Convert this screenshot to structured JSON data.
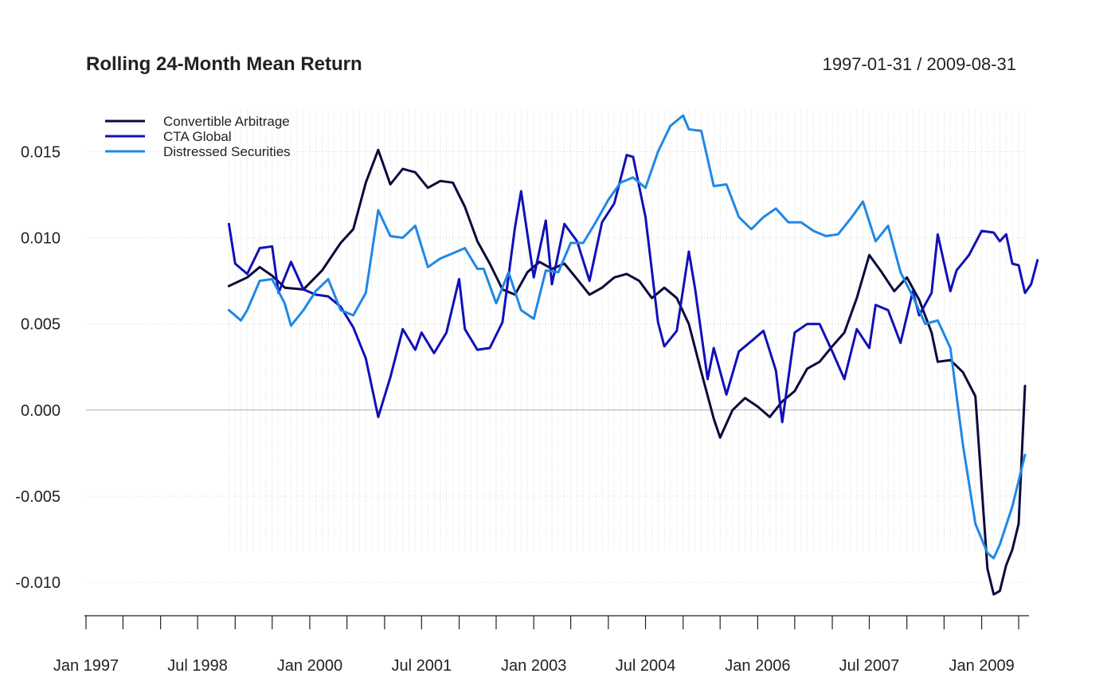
{
  "chart_data": {
    "type": "line",
    "title": "Rolling 24-Month Mean Return",
    "date_range": "1997-01-31 / 2009-08-31",
    "xlabel": "",
    "ylabel": "",
    "ylim": [
      -0.0118,
      0.0177
    ],
    "xlim": [
      "1997-01-31",
      "2009-08-31"
    ],
    "grid": true,
    "legend_position": "top-left",
    "y_ticks": [
      {
        "value": 0.015,
        "label": "0.015"
      },
      {
        "value": 0.01,
        "label": "0.010"
      },
      {
        "value": 0.005,
        "label": "0.005"
      },
      {
        "value": 0.0,
        "label": "0.000"
      },
      {
        "value": -0.005,
        "label": "-0.005"
      },
      {
        "value": -0.01,
        "label": "-0.010"
      }
    ],
    "x_ticks": [
      {
        "date": "1997-01-31",
        "label": "Jan 1997"
      },
      {
        "date": "1998-07-31",
        "label": "Jul 1998"
      },
      {
        "date": "2000-01-31",
        "label": "Jan 2000"
      },
      {
        "date": "2001-07-31",
        "label": "Jul 2001"
      },
      {
        "date": "2003-01-31",
        "label": "Jan 2003"
      },
      {
        "date": "2004-07-31",
        "label": "Jul 2004"
      },
      {
        "date": "2006-01-31",
        "label": "Jan 2006"
      },
      {
        "date": "2007-07-31",
        "label": "Jul 2007"
      },
      {
        "date": "2009-01-31",
        "label": "Jan 2009"
      }
    ],
    "series": [
      {
        "name": "Convertible Arbitrage",
        "color": "#0a0a3c",
        "points": [
          [
            "1998-12-31",
            0.0072
          ],
          [
            "1999-03-31",
            0.0077
          ],
          [
            "1999-05-31",
            0.0083
          ],
          [
            "1999-07-31",
            0.0078
          ],
          [
            "1999-09-31",
            0.0071
          ],
          [
            "1999-12-31",
            0.007
          ],
          [
            "2000-03-31",
            0.0081
          ],
          [
            "2000-06-30",
            0.0097
          ],
          [
            "2000-08-31",
            0.0105
          ],
          [
            "2000-10-31",
            0.0132
          ],
          [
            "2000-12-31",
            0.0151
          ],
          [
            "2001-02-28",
            0.0131
          ],
          [
            "2001-04-30",
            0.014
          ],
          [
            "2001-06-30",
            0.0138
          ],
          [
            "2001-08-31",
            0.0129
          ],
          [
            "2001-10-31",
            0.0133
          ],
          [
            "2001-12-31",
            0.0132
          ],
          [
            "2002-02-28",
            0.0118
          ],
          [
            "2002-04-30",
            0.0098
          ],
          [
            "2002-06-30",
            0.0085
          ],
          [
            "2002-08-31",
            0.007
          ],
          [
            "2002-10-31",
            0.0067
          ],
          [
            "2002-12-31",
            0.008
          ],
          [
            "2003-02-28",
            0.0086
          ],
          [
            "2003-04-30",
            0.0082
          ],
          [
            "2003-06-30",
            0.0085
          ],
          [
            "2003-08-31",
            0.0076
          ],
          [
            "2003-10-31",
            0.0067
          ],
          [
            "2003-12-31",
            0.0071
          ],
          [
            "2004-02-29",
            0.0077
          ],
          [
            "2004-04-30",
            0.0079
          ],
          [
            "2004-06-30",
            0.0075
          ],
          [
            "2004-08-31",
            0.0065
          ],
          [
            "2004-10-31",
            0.0071
          ],
          [
            "2004-12-31",
            0.0065
          ],
          [
            "2005-02-28",
            0.005
          ],
          [
            "2005-04-30",
            0.0022
          ],
          [
            "2005-06-30",
            -0.0005
          ],
          [
            "2005-07-31",
            -0.0016
          ],
          [
            "2005-09-30",
            0.0
          ],
          [
            "2005-11-30",
            0.0007
          ],
          [
            "2006-01-31",
            0.0002
          ],
          [
            "2006-03-31",
            -0.0004
          ],
          [
            "2006-05-31",
            0.0005
          ],
          [
            "2006-07-31",
            0.0011
          ],
          [
            "2006-09-30",
            0.0024
          ],
          [
            "2006-11-30",
            0.0028
          ],
          [
            "2007-01-31",
            0.0037
          ],
          [
            "2007-03-31",
            0.0045
          ],
          [
            "2007-05-31",
            0.0065
          ],
          [
            "2007-07-31",
            0.009
          ],
          [
            "2007-09-30",
            0.008
          ],
          [
            "2007-11-30",
            0.0069
          ],
          [
            "2008-01-31",
            0.0077
          ],
          [
            "2008-03-31",
            0.0064
          ],
          [
            "2008-05-31",
            0.0045
          ],
          [
            "2008-06-30",
            0.0028
          ],
          [
            "2008-08-31",
            0.0029
          ],
          [
            "2008-10-31",
            0.0022
          ],
          [
            "2008-12-31",
            0.0008
          ],
          [
            "2009-02-28",
            -0.0092
          ],
          [
            "2009-03-31",
            -0.0107
          ],
          [
            "2009-04-30",
            -0.0105
          ],
          [
            "2009-05-31",
            -0.009
          ],
          [
            "2009-06-30",
            -0.0081
          ],
          [
            "2009-07-31",
            -0.0066
          ],
          [
            "2009-08-31",
            0.0014
          ]
        ]
      },
      {
        "name": "CTA Global",
        "color": "#1010b8",
        "points": [
          [
            "1998-12-31",
            0.0108
          ],
          [
            "1999-01-31",
            0.0085
          ],
          [
            "1999-03-31",
            0.0079
          ],
          [
            "1999-05-31",
            0.0094
          ],
          [
            "1999-07-31",
            0.0095
          ],
          [
            "1999-08-31",
            0.0068
          ],
          [
            "1999-10-31",
            0.0086
          ],
          [
            "1999-12-31",
            0.007
          ],
          [
            "2000-02-29",
            0.0067
          ],
          [
            "2000-04-30",
            0.0066
          ],
          [
            "2000-06-30",
            0.006
          ],
          [
            "2000-08-31",
            0.0048
          ],
          [
            "2000-10-31",
            0.003
          ],
          [
            "2000-12-31",
            -0.0004
          ],
          [
            "2001-02-28",
            0.0019
          ],
          [
            "2001-04-30",
            0.0047
          ],
          [
            "2001-06-30",
            0.0035
          ],
          [
            "2001-07-31",
            0.0045
          ],
          [
            "2001-09-30",
            0.0033
          ],
          [
            "2001-11-30",
            0.0045
          ],
          [
            "2002-01-31",
            0.0076
          ],
          [
            "2002-02-28",
            0.0047
          ],
          [
            "2002-04-30",
            0.0035
          ],
          [
            "2002-06-30",
            0.0036
          ],
          [
            "2002-08-31",
            0.0051
          ],
          [
            "2002-10-31",
            0.0106
          ],
          [
            "2002-11-30",
            0.0127
          ],
          [
            "2003-01-31",
            0.0077
          ],
          [
            "2003-03-31",
            0.011
          ],
          [
            "2003-04-30",
            0.0073
          ],
          [
            "2003-06-30",
            0.0108
          ],
          [
            "2003-08-31",
            0.0098
          ],
          [
            "2003-10-31",
            0.0075
          ],
          [
            "2003-12-31",
            0.0109
          ],
          [
            "2004-02-29",
            0.012
          ],
          [
            "2004-04-30",
            0.0148
          ],
          [
            "2004-05-31",
            0.0147
          ],
          [
            "2004-07-31",
            0.0112
          ],
          [
            "2004-09-30",
            0.0051
          ],
          [
            "2004-10-31",
            0.0037
          ],
          [
            "2004-12-31",
            0.0046
          ],
          [
            "2005-02-28",
            0.0092
          ],
          [
            "2005-03-31",
            0.007
          ],
          [
            "2005-05-31",
            0.0018
          ],
          [
            "2005-06-30",
            0.0036
          ],
          [
            "2005-08-31",
            0.0009
          ],
          [
            "2005-10-31",
            0.0034
          ],
          [
            "2005-12-31",
            0.004
          ],
          [
            "2006-02-28",
            0.0046
          ],
          [
            "2006-04-30",
            0.0023
          ],
          [
            "2006-05-31",
            -0.0007
          ],
          [
            "2006-07-31",
            0.0045
          ],
          [
            "2006-09-30",
            0.005
          ],
          [
            "2006-11-30",
            0.005
          ],
          [
            "2007-01-31",
            0.0034
          ],
          [
            "2007-03-31",
            0.0018
          ],
          [
            "2007-05-31",
            0.0047
          ],
          [
            "2007-07-31",
            0.0036
          ],
          [
            "2007-08-31",
            0.0061
          ],
          [
            "2007-10-31",
            0.0058
          ],
          [
            "2007-12-31",
            0.0039
          ],
          [
            "2008-02-29",
            0.0069
          ],
          [
            "2008-03-31",
            0.0055
          ],
          [
            "2008-05-31",
            0.0068
          ],
          [
            "2008-06-30",
            0.0102
          ],
          [
            "2008-08-31",
            0.0069
          ],
          [
            "2008-09-30",
            0.0081
          ],
          [
            "2008-11-30",
            0.009
          ],
          [
            "2009-01-31",
            0.0104
          ],
          [
            "2009-03-31",
            0.0103
          ],
          [
            "2009-04-30",
            0.0098
          ],
          [
            "2009-05-31",
            0.0102
          ],
          [
            "2009-06-30",
            0.0085
          ],
          [
            "2009-07-31",
            0.0084
          ],
          [
            "2009-08-31",
            0.0068
          ],
          [
            "2009-09-30",
            0.0073
          ],
          [
            "2009-10-31",
            0.0087
          ]
        ]
      },
      {
        "name": "Distressed Securities",
        "color": "#1e88e5",
        "points": [
          [
            "1998-12-31",
            0.0058
          ],
          [
            "1999-02-28",
            0.0052
          ],
          [
            "1999-03-31",
            0.0058
          ],
          [
            "1999-05-31",
            0.0075
          ],
          [
            "1999-07-31",
            0.0076
          ],
          [
            "1999-09-30",
            0.0062
          ],
          [
            "1999-10-31",
            0.0049
          ],
          [
            "1999-12-31",
            0.0058
          ],
          [
            "2000-02-29",
            0.0069
          ],
          [
            "2000-04-30",
            0.0076
          ],
          [
            "2000-06-30",
            0.0058
          ],
          [
            "2000-08-31",
            0.0055
          ],
          [
            "2000-10-31",
            0.0068
          ],
          [
            "2000-12-31",
            0.0116
          ],
          [
            "2001-02-28",
            0.0101
          ],
          [
            "2001-04-30",
            0.01
          ],
          [
            "2001-06-30",
            0.0107
          ],
          [
            "2001-08-31",
            0.0083
          ],
          [
            "2001-10-31",
            0.0088
          ],
          [
            "2001-12-31",
            0.0091
          ],
          [
            "2002-02-28",
            0.0094
          ],
          [
            "2002-04-30",
            0.0082
          ],
          [
            "2002-05-31",
            0.0082
          ],
          [
            "2002-07-31",
            0.0062
          ],
          [
            "2002-09-30",
            0.008
          ],
          [
            "2002-11-30",
            0.0058
          ],
          [
            "2003-01-31",
            0.0053
          ],
          [
            "2003-03-31",
            0.0081
          ],
          [
            "2003-05-31",
            0.008
          ],
          [
            "2003-07-31",
            0.0097
          ],
          [
            "2003-09-30",
            0.0097
          ],
          [
            "2003-11-30",
            0.0109
          ],
          [
            "2004-01-31",
            0.0122
          ],
          [
            "2004-03-31",
            0.0132
          ],
          [
            "2004-05-31",
            0.0135
          ],
          [
            "2004-07-31",
            0.0129
          ],
          [
            "2004-09-30",
            0.015
          ],
          [
            "2004-11-30",
            0.0165
          ],
          [
            "2005-01-31",
            0.0171
          ],
          [
            "2005-02-28",
            0.0163
          ],
          [
            "2005-04-30",
            0.0162
          ],
          [
            "2005-06-30",
            0.013
          ],
          [
            "2005-08-31",
            0.0131
          ],
          [
            "2005-10-31",
            0.0112
          ],
          [
            "2005-12-31",
            0.0105
          ],
          [
            "2006-02-28",
            0.0112
          ],
          [
            "2006-04-30",
            0.0117
          ],
          [
            "2006-06-30",
            0.0109
          ],
          [
            "2006-08-31",
            0.0109
          ],
          [
            "2006-10-31",
            0.0104
          ],
          [
            "2006-12-31",
            0.0101
          ],
          [
            "2007-02-28",
            0.0102
          ],
          [
            "2007-04-30",
            0.0111
          ],
          [
            "2007-06-30",
            0.0121
          ],
          [
            "2007-08-31",
            0.0098
          ],
          [
            "2007-10-31",
            0.0107
          ],
          [
            "2007-12-31",
            0.008
          ],
          [
            "2008-02-29",
            0.0066
          ],
          [
            "2008-04-30",
            0.005
          ],
          [
            "2008-06-30",
            0.0052
          ],
          [
            "2008-08-31",
            0.0036
          ],
          [
            "2008-10-31",
            -0.002
          ],
          [
            "2008-12-31",
            -0.0066
          ],
          [
            "2009-02-28",
            -0.0083
          ],
          [
            "2009-03-31",
            -0.0086
          ],
          [
            "2009-04-30",
            -0.0078
          ],
          [
            "2009-06-30",
            -0.0056
          ],
          [
            "2009-08-31",
            -0.0026
          ]
        ]
      }
    ]
  }
}
